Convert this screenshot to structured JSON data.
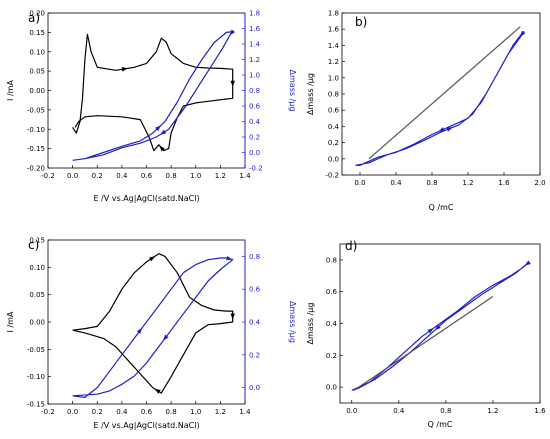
{
  "chart_data": [
    {
      "panel": "a)",
      "type": "line",
      "xlabel": "E /V vs.Ag|AgCl(satd.NaCl)",
      "ylabel": "I /mA",
      "y2label": "Δmass /μg",
      "xlim": [
        -0.2,
        1.4
      ],
      "xticks": [
        "-0.2",
        "0.0",
        "0.2",
        "0.4",
        "0.6",
        "0.8",
        "1.0",
        "1.2",
        "1.4"
      ],
      "ylim": [
        -0.2,
        0.2
      ],
      "yticks": [
        "-0.20",
        "-0.15",
        "-0.10",
        "-0.05",
        "0.00",
        "0.05",
        "0.10",
        "0.15",
        "0.20"
      ],
      "y2lim": [
        -0.2,
        1.8
      ],
      "y2ticks": [
        "-0.2",
        "0.0",
        "0.2",
        "0.4",
        "0.6",
        "0.8",
        "1.0",
        "1.2",
        "1.4",
        "1.6",
        "1.8"
      ],
      "colors": {
        "current": "#000000",
        "mass": "#1f1fc8"
      },
      "series": [
        {
          "axis": "left",
          "color": "#000000",
          "points": [
            [
              0.0,
              -0.095
            ],
            [
              0.03,
              -0.11
            ],
            [
              0.06,
              -0.08
            ],
            [
              0.08,
              -0.02
            ],
            [
              0.1,
              0.08
            ],
            [
              0.12,
              0.145
            ],
            [
              0.15,
              0.1
            ],
            [
              0.2,
              0.06
            ],
            [
              0.35,
              0.052
            ],
            [
              0.5,
              0.06
            ],
            [
              0.6,
              0.07
            ],
            [
              0.68,
              0.1
            ],
            [
              0.72,
              0.135
            ],
            [
              0.76,
              0.125
            ],
            [
              0.8,
              0.095
            ],
            [
              0.9,
              0.07
            ],
            [
              1.0,
              0.06
            ],
            [
              1.1,
              0.058
            ],
            [
              1.2,
              0.057
            ],
            [
              1.3,
              0.055
            ],
            [
              1.3,
              -0.02
            ],
            [
              1.25,
              -0.022
            ],
            [
              1.1,
              -0.028
            ],
            [
              1.0,
              -0.032
            ],
            [
              0.9,
              -0.04
            ],
            [
              0.85,
              -0.07
            ],
            [
              0.8,
              -0.11
            ],
            [
              0.78,
              -0.15
            ],
            [
              0.74,
              -0.155
            ],
            [
              0.7,
              -0.14
            ],
            [
              0.66,
              -0.155
            ],
            [
              0.62,
              -0.12
            ],
            [
              0.55,
              -0.075
            ],
            [
              0.4,
              -0.068
            ],
            [
              0.2,
              -0.065
            ],
            [
              0.1,
              -0.068
            ],
            [
              0.05,
              -0.08
            ],
            [
              0.02,
              -0.095
            ]
          ]
        },
        {
          "axis": "right",
          "color": "#1f1fc8",
          "points": [
            [
              0.0,
              -0.1
            ],
            [
              0.1,
              -0.08
            ],
            [
              0.25,
              0.0
            ],
            [
              0.4,
              0.08
            ],
            [
              0.55,
              0.15
            ],
            [
              0.65,
              0.25
            ],
            [
              0.75,
              0.4
            ],
            [
              0.85,
              0.65
            ],
            [
              0.95,
              0.95
            ],
            [
              1.05,
              1.2
            ],
            [
              1.15,
              1.42
            ],
            [
              1.25,
              1.55
            ],
            [
              1.3,
              1.56
            ],
            [
              1.28,
              1.52
            ],
            [
              1.22,
              1.35
            ],
            [
              1.12,
              1.1
            ],
            [
              1.02,
              0.85
            ],
            [
              0.92,
              0.6
            ],
            [
              0.85,
              0.45
            ],
            [
              0.78,
              0.3
            ],
            [
              0.68,
              0.2
            ],
            [
              0.55,
              0.12
            ],
            [
              0.4,
              0.06
            ],
            [
              0.25,
              -0.03
            ],
            [
              0.1,
              -0.08
            ],
            [
              0.0,
              -0.1
            ]
          ]
        }
      ]
    },
    {
      "panel": "b)",
      "type": "line",
      "xlabel": "Q /mC",
      "ylabel": "Δmass /μg",
      "xlim": [
        -0.2,
        2.0
      ],
      "xticks": [
        "0.0",
        "0.4",
        "0.8",
        "1.2",
        "1.6",
        "2.0"
      ],
      "ylim": [
        -0.2,
        1.8
      ],
      "yticks": [
        "-0.2",
        "0.0",
        "0.2",
        "0.4",
        "0.6",
        "0.8",
        "1.0",
        "1.2",
        "1.4",
        "1.6",
        "1.8"
      ],
      "series": [
        {
          "axis": "left",
          "color": "#1f1fc8",
          "points": [
            [
              -0.05,
              -0.08
            ],
            [
              0.1,
              -0.05
            ],
            [
              0.3,
              0.05
            ],
            [
              0.5,
              0.12
            ],
            [
              0.7,
              0.22
            ],
            [
              0.9,
              0.33
            ],
            [
              1.1,
              0.42
            ],
            [
              1.25,
              0.55
            ],
            [
              1.4,
              0.8
            ],
            [
              1.55,
              1.1
            ],
            [
              1.7,
              1.4
            ],
            [
              1.8,
              1.55
            ],
            [
              1.82,
              1.57
            ],
            [
              1.78,
              1.5
            ],
            [
              1.65,
              1.3
            ],
            [
              1.5,
              1.0
            ],
            [
              1.35,
              0.7
            ],
            [
              1.2,
              0.5
            ],
            [
              1.0,
              0.4
            ],
            [
              0.8,
              0.3
            ],
            [
              0.6,
              0.18
            ],
            [
              0.4,
              0.08
            ],
            [
              0.2,
              0.02
            ],
            [
              0.0,
              -0.08
            ],
            [
              -0.05,
              -0.08
            ]
          ]
        },
        {
          "axis": "left",
          "color": "#555555",
          "points": [
            [
              0.1,
              0.0
            ],
            [
              1.78,
              1.63
            ]
          ]
        }
      ]
    },
    {
      "panel": "c)",
      "type": "line",
      "xlabel": "E /V vs.Ag|AgCl(satd.NaCl)",
      "ylabel": "I /mA",
      "y2label": "Δmass /μg",
      "xlim": [
        -0.2,
        1.4
      ],
      "xticks": [
        "-0.2",
        "0.0",
        "0.2",
        "0.4",
        "0.6",
        "0.8",
        "1.0",
        "1.2",
        "1.4"
      ],
      "ylim": [
        -0.15,
        0.15
      ],
      "yticks": [
        "-0.15",
        "-0.10",
        "-0.05",
        "0.00",
        "0.05",
        "0.10",
        "0.15"
      ],
      "y2lim": [
        -0.1,
        0.9
      ],
      "y2ticks": [
        "0.0",
        "0.2",
        "0.4",
        "0.6",
        "0.8"
      ],
      "series": [
        {
          "axis": "left",
          "color": "#000000",
          "points": [
            [
              0.0,
              -0.015
            ],
            [
              0.1,
              -0.012
            ],
            [
              0.2,
              -0.008
            ],
            [
              0.3,
              0.02
            ],
            [
              0.4,
              0.06
            ],
            [
              0.5,
              0.09
            ],
            [
              0.6,
              0.11
            ],
            [
              0.7,
              0.125
            ],
            [
              0.75,
              0.12
            ],
            [
              0.85,
              0.09
            ],
            [
              0.95,
              0.045
            ],
            [
              1.05,
              0.03
            ],
            [
              1.15,
              0.022
            ],
            [
              1.25,
              0.02
            ],
            [
              1.3,
              0.02
            ],
            [
              1.3,
              0.0
            ],
            [
              1.2,
              -0.003
            ],
            [
              1.1,
              -0.005
            ],
            [
              1.0,
              -0.02
            ],
            [
              0.9,
              -0.06
            ],
            [
              0.8,
              -0.1
            ],
            [
              0.72,
              -0.13
            ],
            [
              0.65,
              -0.12
            ],
            [
              0.55,
              -0.095
            ],
            [
              0.45,
              -0.07
            ],
            [
              0.35,
              -0.045
            ],
            [
              0.25,
              -0.03
            ],
            [
              0.1,
              -0.02
            ],
            [
              0.0,
              -0.015
            ]
          ]
        },
        {
          "axis": "right",
          "color": "#1f1fc8",
          "points": [
            [
              0.0,
              -0.05
            ],
            [
              0.1,
              -0.06
            ],
            [
              0.2,
              0.0
            ],
            [
              0.3,
              0.1
            ],
            [
              0.4,
              0.2
            ],
            [
              0.5,
              0.3
            ],
            [
              0.6,
              0.4
            ],
            [
              0.7,
              0.5
            ],
            [
              0.8,
              0.6
            ],
            [
              0.9,
              0.7
            ],
            [
              1.0,
              0.75
            ],
            [
              1.1,
              0.78
            ],
            [
              1.2,
              0.79
            ],
            [
              1.25,
              0.79
            ],
            [
              1.3,
              0.78
            ],
            [
              1.2,
              0.72
            ],
            [
              1.1,
              0.65
            ],
            [
              1.0,
              0.55
            ],
            [
              0.9,
              0.45
            ],
            [
              0.8,
              0.35
            ],
            [
              0.7,
              0.25
            ],
            [
              0.6,
              0.15
            ],
            [
              0.5,
              0.07
            ],
            [
              0.4,
              0.02
            ],
            [
              0.3,
              -0.02
            ],
            [
              0.2,
              -0.04
            ],
            [
              0.0,
              -0.05
            ]
          ]
        }
      ]
    },
    {
      "panel": "d)",
      "type": "line",
      "xlabel": "Q /mC",
      "ylabel": "Δmass /μg",
      "xlim": [
        -0.1,
        1.6
      ],
      "xticks": [
        "0.0",
        "0.4",
        "0.8",
        "1.2",
        "1.6"
      ],
      "ylim": [
        -0.1,
        0.9
      ],
      "yticks": [
        "0.0",
        "0.2",
        "0.4",
        "0.6",
        "0.8"
      ],
      "series": [
        {
          "axis": "left",
          "color": "#1f1fc8",
          "points": [
            [
              0.0,
              -0.02
            ],
            [
              0.15,
              0.03
            ],
            [
              0.3,
              0.12
            ],
            [
              0.45,
              0.22
            ],
            [
              0.6,
              0.32
            ],
            [
              0.75,
              0.4
            ],
            [
              0.9,
              0.48
            ],
            [
              1.05,
              0.57
            ],
            [
              1.2,
              0.64
            ],
            [
              1.35,
              0.7
            ],
            [
              1.45,
              0.75
            ],
            [
              1.5,
              0.78
            ],
            [
              1.48,
              0.77
            ],
            [
              1.4,
              0.72
            ],
            [
              1.25,
              0.65
            ],
            [
              1.1,
              0.58
            ],
            [
              0.95,
              0.5
            ],
            [
              0.8,
              0.42
            ],
            [
              0.65,
              0.32
            ],
            [
              0.5,
              0.22
            ],
            [
              0.35,
              0.13
            ],
            [
              0.2,
              0.05
            ],
            [
              0.05,
              -0.01
            ],
            [
              0.0,
              -0.02
            ]
          ]
        },
        {
          "axis": "left",
          "color": "#555555",
          "points": [
            [
              0.02,
              -0.02
            ],
            [
              1.2,
              0.57
            ]
          ]
        }
      ]
    }
  ]
}
